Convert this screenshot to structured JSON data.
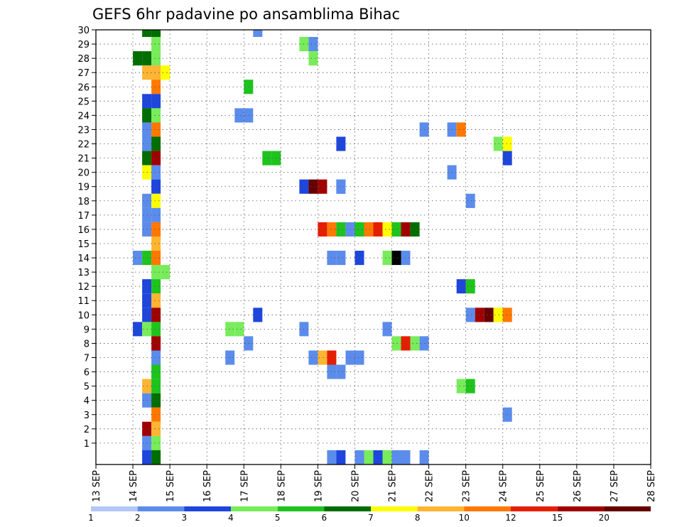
{
  "chart_data": {
    "type": "heatmap",
    "title": "GEFS 6hr padavine po ansamblima Bihac",
    "xlabel": "",
    "ylabel": "",
    "x_tick_labels": [
      "13 SEP",
      "14 SEP",
      "15 SEP",
      "16 SEP",
      "17 SEP",
      "18 SEP",
      "19 SEP",
      "20 SEP",
      "21 SEP",
      "22 SEP",
      "23 SEP",
      "24 SEP",
      "25 SEP",
      "26 SEP",
      "27 SEP",
      "28 SEP"
    ],
    "x_unit": "6-hour step from 13 SEP 00Z",
    "xlim": [
      0,
      60
    ],
    "ylim": [
      0,
      30
    ],
    "y_tick_labels": [
      "1",
      "2",
      "3",
      "4",
      "5",
      "6",
      "7",
      "8",
      "9",
      "10",
      "11",
      "12",
      "13",
      "14",
      "15",
      "16",
      "17",
      "18",
      "19",
      "20",
      "21",
      "22",
      "23",
      "24",
      "25",
      "26",
      "27",
      "28",
      "29",
      "30"
    ],
    "grid": true,
    "colorbar": {
      "position": "bottom",
      "labels": [
        "1",
        "2",
        "3",
        "4",
        "5",
        "6",
        "7",
        "8",
        "10",
        "12",
        "15",
        "20"
      ],
      "colors": [
        "#b4c6f5",
        "#5b8cec",
        "#1e46dc",
        "#78ec5a",
        "#1ec31e",
        "#006e00",
        "#ffff00",
        "#ffb432",
        "#ff7800",
        "#e61e00",
        "#a00000",
        "#640000"
      ]
    },
    "cells": [
      [
        5,
        30,
        5
      ],
      [
        6,
        30,
        5
      ],
      [
        6,
        29,
        3
      ],
      [
        4,
        28,
        5
      ],
      [
        5,
        28,
        5
      ],
      [
        6,
        28,
        3
      ],
      [
        5,
        27,
        7
      ],
      [
        6,
        27,
        7
      ],
      [
        7,
        27,
        6
      ],
      [
        6,
        26,
        8
      ],
      [
        5,
        25,
        2
      ],
      [
        6,
        25,
        2
      ],
      [
        5,
        24,
        5
      ],
      [
        6,
        24,
        3
      ],
      [
        5,
        23,
        1
      ],
      [
        6,
        23,
        8
      ],
      [
        5,
        22,
        1
      ],
      [
        6,
        22,
        5
      ],
      [
        5,
        21,
        5
      ],
      [
        6,
        21,
        10
      ],
      [
        5,
        20,
        6
      ],
      [
        6,
        20,
        1
      ],
      [
        6,
        19,
        2
      ],
      [
        5,
        18,
        1
      ],
      [
        6,
        18,
        6
      ],
      [
        5,
        17,
        1
      ],
      [
        6,
        17,
        1
      ],
      [
        5,
        16,
        1
      ],
      [
        6,
        16,
        8
      ],
      [
        6,
        15,
        7
      ],
      [
        4,
        14,
        1
      ],
      [
        5,
        14,
        4
      ],
      [
        6,
        14,
        8
      ],
      [
        6,
        13,
        3
      ],
      [
        7,
        13,
        3
      ],
      [
        5,
        12,
        2
      ],
      [
        6,
        12,
        4
      ],
      [
        5,
        11,
        2
      ],
      [
        6,
        11,
        7
      ],
      [
        5,
        10,
        2
      ],
      [
        6,
        10,
        10
      ],
      [
        4,
        9,
        2
      ],
      [
        5,
        9,
        3
      ],
      [
        6,
        9,
        4
      ],
      [
        6,
        8,
        10
      ],
      [
        6,
        7,
        1
      ],
      [
        6,
        6,
        4
      ],
      [
        5,
        5,
        7
      ],
      [
        6,
        5,
        4
      ],
      [
        5,
        4,
        1
      ],
      [
        6,
        4,
        5
      ],
      [
        6,
        3,
        8
      ],
      [
        5,
        2,
        10
      ],
      [
        6,
        2,
        7
      ],
      [
        5,
        1,
        1
      ],
      [
        6,
        1,
        3
      ],
      [
        5,
        0,
        2
      ],
      [
        6,
        0,
        5
      ],
      [
        15,
        24,
        1
      ],
      [
        16,
        24,
        1
      ],
      [
        16,
        26,
        4
      ],
      [
        17,
        10,
        2
      ],
      [
        14,
        9,
        3
      ],
      [
        15,
        9,
        3
      ],
      [
        16,
        8,
        1
      ],
      [
        14,
        7,
        1
      ],
      [
        17,
        30,
        1
      ],
      [
        22,
        29,
        3
      ],
      [
        23,
        29,
        1
      ],
      [
        23,
        28,
        3
      ],
      [
        18,
        21,
        4
      ],
      [
        19,
        21,
        4
      ],
      [
        22,
        19,
        2
      ],
      [
        23,
        19,
        11
      ],
      [
        24,
        19,
        10
      ],
      [
        26,
        19,
        1
      ],
      [
        24,
        16,
        9
      ],
      [
        25,
        16,
        8
      ],
      [
        26,
        16,
        4
      ],
      [
        27,
        16,
        1
      ],
      [
        28,
        16,
        4
      ],
      [
        29,
        16,
        8
      ],
      [
        30,
        16,
        9
      ],
      [
        31,
        16,
        6
      ],
      [
        32,
        16,
        4
      ],
      [
        33,
        16,
        10
      ],
      [
        34,
        16,
        5
      ],
      [
        25,
        14,
        1
      ],
      [
        26,
        14,
        1
      ],
      [
        28,
        14,
        2
      ],
      [
        31,
        14,
        3
      ],
      [
        32,
        14,
        12
      ],
      [
        33,
        14,
        1
      ],
      [
        22,
        9,
        1
      ],
      [
        31,
        9,
        1
      ],
      [
        32,
        8,
        3
      ],
      [
        33,
        8,
        9
      ],
      [
        34,
        8,
        3
      ],
      [
        35,
        8,
        1
      ],
      [
        23,
        7,
        1
      ],
      [
        24,
        7,
        7
      ],
      [
        25,
        7,
        9
      ],
      [
        27,
        7,
        1
      ],
      [
        28,
        7,
        1
      ],
      [
        25,
        6,
        1
      ],
      [
        26,
        6,
        1
      ],
      [
        25,
        0,
        1
      ],
      [
        26,
        0,
        2
      ],
      [
        28,
        0,
        1
      ],
      [
        29,
        0,
        3
      ],
      [
        30,
        0,
        2
      ],
      [
        31,
        0,
        3
      ],
      [
        32,
        0,
        1
      ],
      [
        33,
        0,
        1
      ],
      [
        35,
        0,
        1
      ],
      [
        26,
        22,
        2
      ],
      [
        26,
        19,
        1
      ],
      [
        35,
        23,
        1
      ],
      [
        38,
        23,
        1
      ],
      [
        39,
        23,
        8
      ],
      [
        38,
        20,
        1
      ],
      [
        40,
        18,
        1
      ],
      [
        39,
        12,
        2
      ],
      [
        40,
        12,
        4
      ],
      [
        40,
        10,
        1
      ],
      [
        41,
        10,
        10
      ],
      [
        42,
        10,
        11
      ],
      [
        43,
        10,
        6
      ],
      [
        44,
        10,
        8
      ],
      [
        44,
        21,
        2
      ],
      [
        43,
        22,
        3
      ],
      [
        44,
        22,
        6
      ],
      [
        39,
        5,
        3
      ],
      [
        40,
        5,
        4
      ],
      [
        44,
        3,
        1
      ]
    ]
  }
}
